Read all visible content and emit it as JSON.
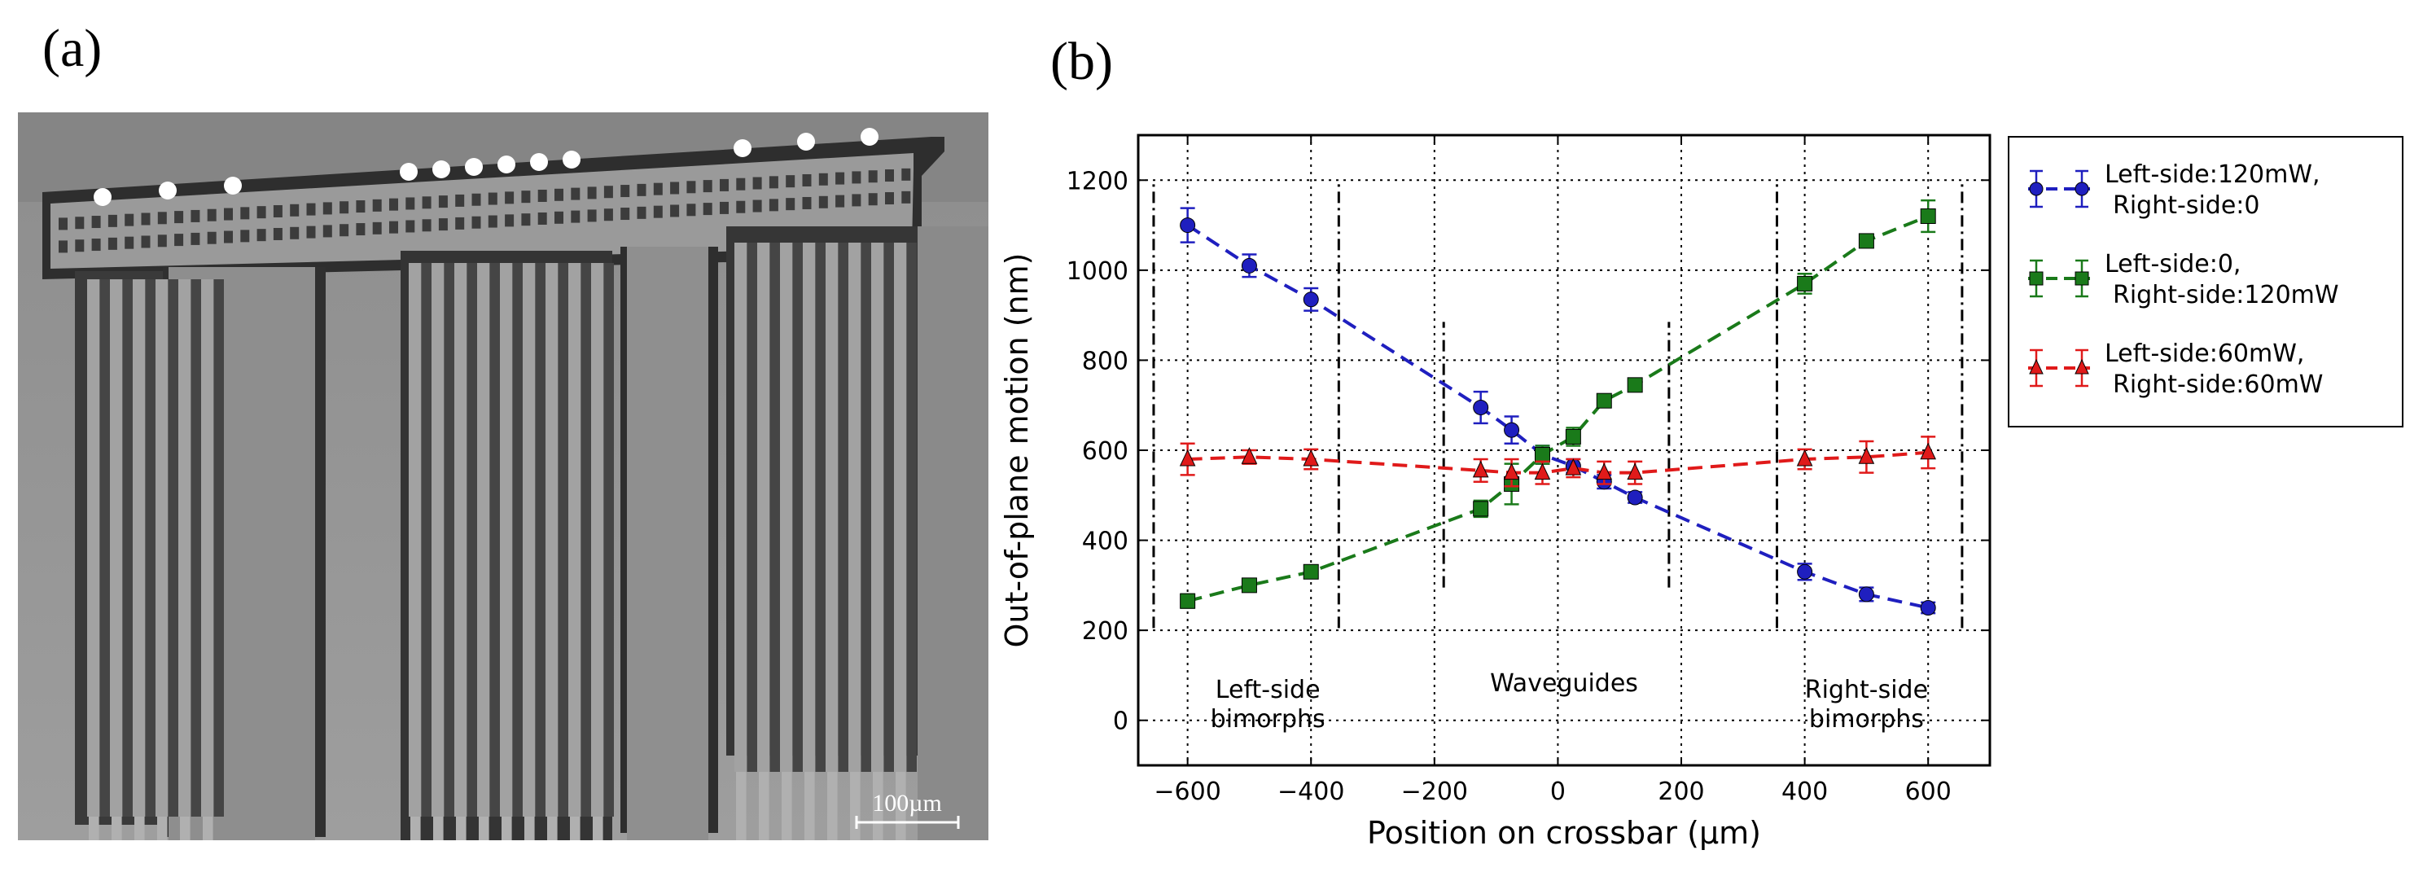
{
  "figure": {
    "panel_a_label": "(a)",
    "panel_b_label": "(b)"
  },
  "sem": {
    "scale_bar_label": "100µm",
    "description_hidden": false
  },
  "chart_data": {
    "type": "line",
    "xlabel": "Position on crossbar (µm)",
    "ylabel": "Out-of-plane motion (nm)",
    "xlim": [
      -680,
      700
    ],
    "ylim": [
      -100,
      1300
    ],
    "xticks": [
      -600,
      -400,
      -200,
      0,
      200,
      400,
      600
    ],
    "xtick_labels": [
      "−600",
      "−400",
      "−200",
      "0",
      "200",
      "400",
      "600"
    ],
    "yticks": [
      0,
      200,
      400,
      600,
      800,
      1000,
      1200
    ],
    "ytick_labels": [
      "0",
      "200",
      "400",
      "600",
      "800",
      "1000",
      "1200"
    ],
    "grid": true,
    "legend_position": "outside-right-top",
    "region_labels": [
      {
        "lines": [
          "Left-side",
          "bimorphs"
        ],
        "x": -470,
        "y": 50
      },
      {
        "lines": [
          "Waveguides"
        ],
        "x": 10,
        "y": 65
      },
      {
        "lines": [
          "Right-side",
          "bimorphs"
        ],
        "x": 500,
        "y": 50
      }
    ],
    "region_dividers": [
      {
        "x": -655,
        "y": [
          205,
          1195
        ]
      },
      {
        "x": -355,
        "y": [
          205,
          1195
        ]
      },
      {
        "x": -185,
        "y": [
          295,
          885
        ]
      },
      {
        "x": 180,
        "y": [
          295,
          885
        ]
      },
      {
        "x": 355,
        "y": [
          205,
          1195
        ]
      },
      {
        "x": 655,
        "y": [
          205,
          1195
        ]
      }
    ],
    "series": [
      {
        "name": "Left-side:120mW,\nRight-side:0",
        "legend_lines": [
          "Left-side:120mW,",
          "Right-side:0"
        ],
        "color": "#1f1fbf",
        "marker": "circle",
        "x": [
          -600,
          -500,
          -400,
          -125,
          -75,
          -25,
          25,
          75,
          125,
          400,
          500,
          600
        ],
        "y": [
          1100,
          1010,
          935,
          695,
          645,
          590,
          565,
          530,
          495,
          330,
          280,
          250
        ],
        "err": [
          38,
          25,
          25,
          35,
          30,
          20,
          15,
          15,
          12,
          18,
          15,
          12
        ]
      },
      {
        "name": "Left-side:0,\nRight-side:120mW",
        "legend_lines": [
          "Left-side:0,",
          "Right-side:120mW"
        ],
        "color": "#1a7a1a",
        "marker": "square",
        "x": [
          -600,
          -500,
          -400,
          -125,
          -75,
          -25,
          25,
          75,
          125,
          400,
          500,
          600
        ],
        "y": [
          265,
          300,
          330,
          470,
          525,
          590,
          630,
          710,
          745,
          970,
          1065,
          1120
        ],
        "err": [
          15,
          12,
          12,
          18,
          45,
          20,
          20,
          12,
          12,
          22,
          12,
          35
        ]
      },
      {
        "name": "Left-side:60mW,\nRight-side:60mW",
        "legend_lines": [
          "Left-side:60mW,",
          "Right-side:60mW"
        ],
        "color": "#e01a1a",
        "marker": "triangle",
        "x": [
          -600,
          -500,
          -400,
          -125,
          -75,
          -25,
          25,
          75,
          125,
          400,
          500,
          600
        ],
        "y": [
          580,
          585,
          580,
          555,
          550,
          550,
          560,
          550,
          550,
          580,
          585,
          595
        ],
        "err": [
          35,
          15,
          22,
          25,
          30,
          25,
          20,
          25,
          25,
          22,
          35,
          35
        ]
      }
    ]
  }
}
